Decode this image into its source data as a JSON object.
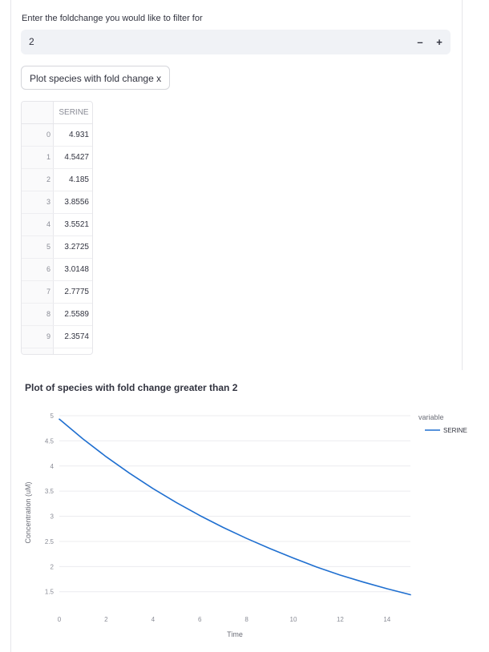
{
  "filter": {
    "label": "Enter the foldchange you would like to filter for",
    "value": "2",
    "minus_symbol": "–",
    "plus_symbol": "+"
  },
  "plot_button": {
    "label": "Plot species with fold change x"
  },
  "table": {
    "column": "SERINE",
    "rows": [
      {
        "index": "0",
        "value": "4.931"
      },
      {
        "index": "1",
        "value": "4.5427"
      },
      {
        "index": "2",
        "value": "4.185"
      },
      {
        "index": "3",
        "value": "3.8556"
      },
      {
        "index": "4",
        "value": "3.5521"
      },
      {
        "index": "5",
        "value": "3.2725"
      },
      {
        "index": "6",
        "value": "3.0148"
      },
      {
        "index": "7",
        "value": "2.7775"
      },
      {
        "index": "8",
        "value": "2.5589"
      },
      {
        "index": "9",
        "value": "2.3574"
      }
    ]
  },
  "chart_title": "Plot of species with fold change greater than 2",
  "chart_data": {
    "type": "line",
    "xlabel": "Time",
    "ylabel": "Concentration (uM)",
    "xlim": [
      0,
      15
    ],
    "ylim": [
      1.4,
      5
    ],
    "x_ticks": [
      "0",
      "2",
      "4",
      "6",
      "8",
      "10",
      "12",
      "14"
    ],
    "y_ticks": [
      "1.5",
      "2",
      "2.5",
      "3",
      "3.5",
      "4",
      "4.5",
      "5"
    ],
    "grid": true,
    "legend_title": "variable",
    "legend_position": "top-right",
    "series": [
      {
        "name": "SERINE",
        "color": "#1f6fd0",
        "x": [
          0,
          1,
          2,
          3,
          4,
          5,
          6,
          7,
          8,
          9,
          10,
          11,
          12,
          13,
          14,
          15
        ],
        "values": [
          4.931,
          4.5427,
          4.185,
          3.8556,
          3.5521,
          3.2725,
          3.0148,
          2.7775,
          2.5589,
          2.3574,
          2.17,
          1.99,
          1.83,
          1.69,
          1.56,
          1.44
        ]
      }
    ]
  }
}
